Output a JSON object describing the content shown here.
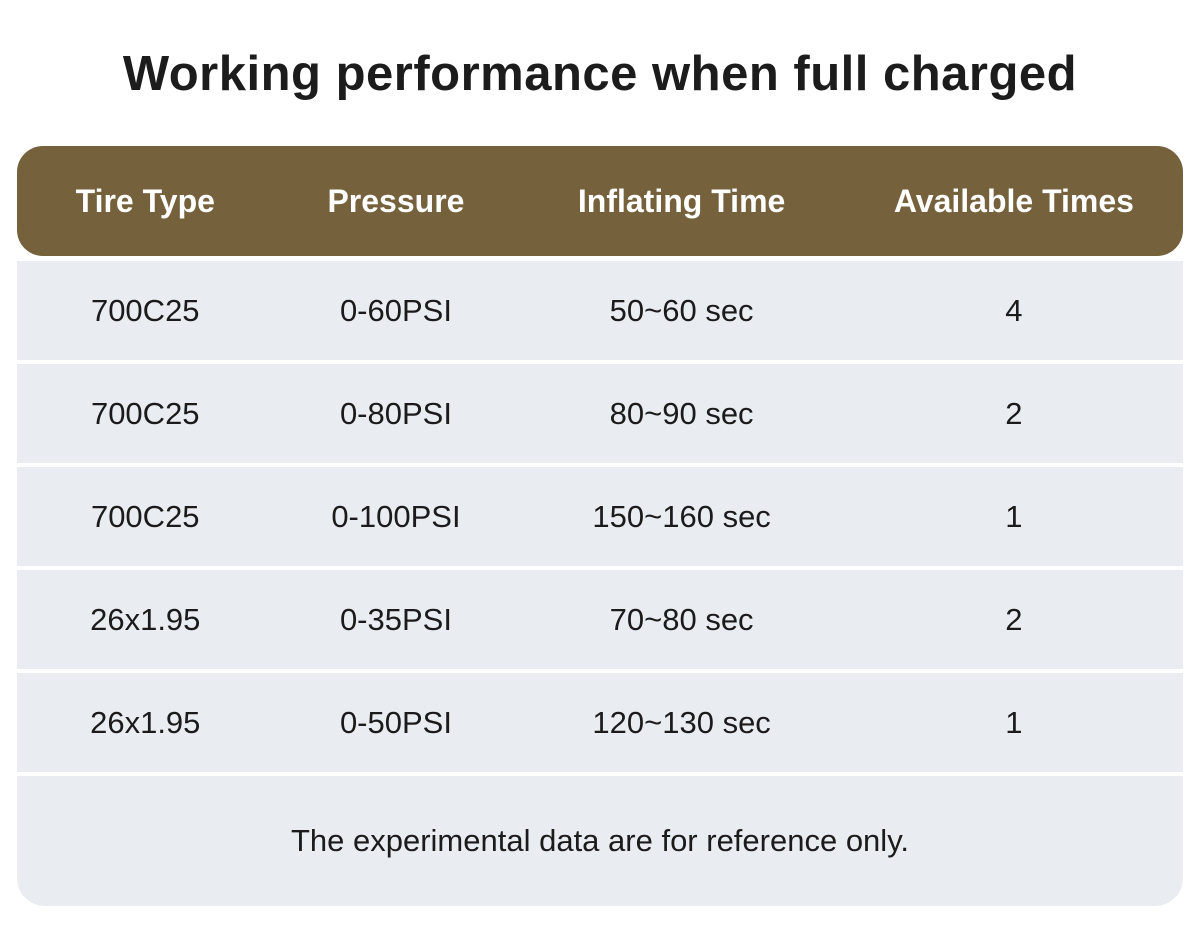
{
  "title": "Working performance when full charged",
  "chart_data": {
    "type": "table",
    "title": "Working performance when full charged",
    "columns": [
      "Tire Type",
      "Pressure",
      "Inflating Time",
      "Available Times"
    ],
    "rows": [
      [
        "700C25",
        "0-60PSI",
        "50~60 sec",
        "4"
      ],
      [
        "700C25",
        "0-80PSI",
        "80~90 sec",
        "2"
      ],
      [
        "700C25",
        "0-100PSI",
        "150~160 sec",
        "1"
      ],
      [
        "26x1.95",
        "0-35PSI",
        "70~80 sec",
        "2"
      ],
      [
        "26x1.95",
        "0-50PSI",
        "120~130 sec",
        "1"
      ]
    ],
    "footnote": "The experimental data are for reference only."
  },
  "colors": {
    "header_bg": "#75613c",
    "header_text": "#ffffff",
    "row_bg": "#e9ecf0",
    "text": "#1b1b1b",
    "page_bg": "#ffffff"
  }
}
